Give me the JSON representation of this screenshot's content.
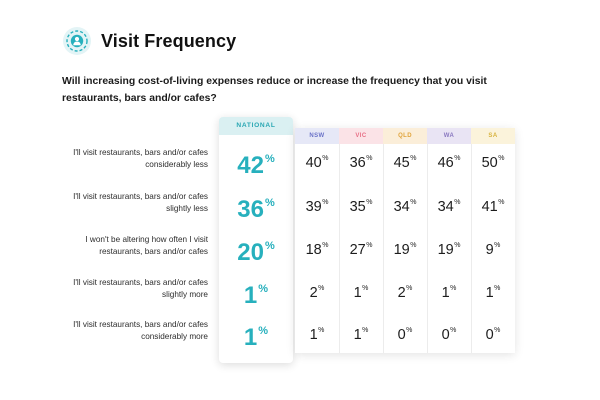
{
  "title": "Visit Frequency",
  "question": "Will increasing cost-of-living expenses reduce or increase the frequency that you visit restaurants, bars and/or cafes?",
  "logo_icon": "person-target-icon",
  "colors": {
    "national": "#27b0bd",
    "NSW": "#6a72c8",
    "VIC": "#e86f86",
    "QLD": "#e0a33a",
    "WA": "#8a78c0",
    "SA": "#d8b33f"
  },
  "chart_data": {
    "type": "table",
    "title": "Visit Frequency",
    "national_label": "NATIONAL",
    "states": [
      "NSW",
      "VIC",
      "QLD",
      "WA",
      "SA"
    ],
    "unit": "%",
    "rows": [
      {
        "label": "I'll visit restaurants, bars and/or cafes considerably less",
        "national": 42,
        "values": [
          40,
          36,
          45,
          46,
          50
        ]
      },
      {
        "label": "I'll visit restaurants, bars and/or cafes slightly less",
        "national": 36,
        "values": [
          39,
          35,
          34,
          34,
          41
        ]
      },
      {
        "label": "I won't be altering how often I visit restaurants, bars and/or cafes",
        "national": 20,
        "values": [
          18,
          27,
          19,
          19,
          9
        ]
      },
      {
        "label": "I'll visit restaurants, bars and/or cafes slightly more",
        "national": 1,
        "values": [
          2,
          1,
          2,
          1,
          1
        ]
      },
      {
        "label": "I'll visit restaurants, bars and/or cafes considerably more",
        "national": 1,
        "values": [
          1,
          1,
          0,
          0,
          0
        ]
      }
    ]
  }
}
